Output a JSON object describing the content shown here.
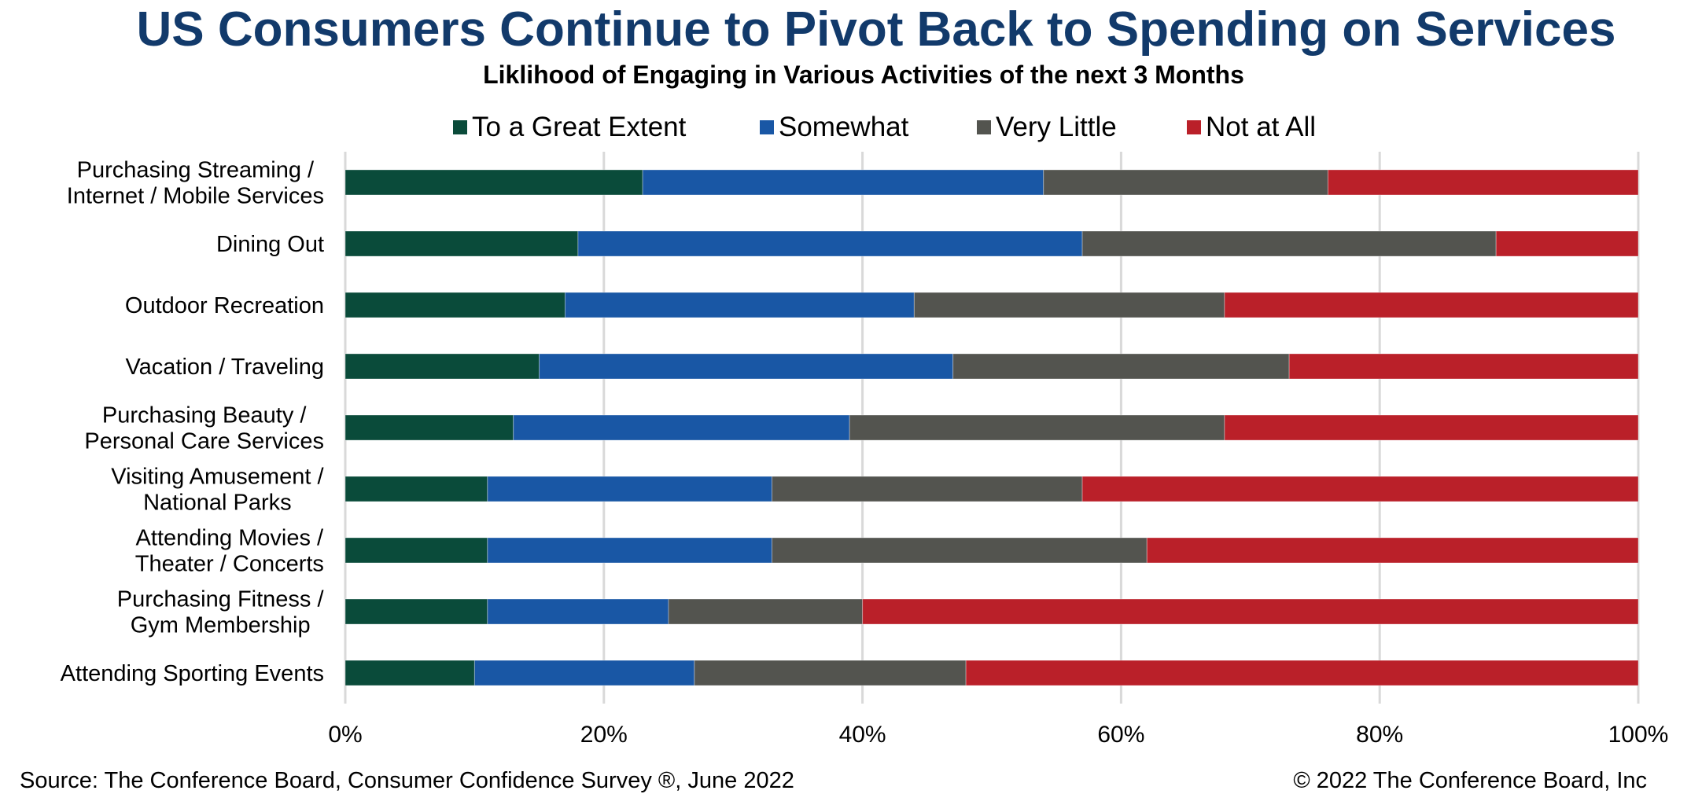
{
  "header": {
    "title": "US Consumers Continue to Pivot Back to Spending on Services",
    "subtitle": "Liklihood of Engaging in Various Activities of the next 3 Months"
  },
  "footer": {
    "source": "Source: The Conference Board, Consumer Confidence Survey ®, June 2022",
    "copyright": "© 2022 The Conference Board, Inc"
  },
  "chart_data": {
    "type": "bar",
    "orientation": "horizontal",
    "stacked": true,
    "percent_stacked": true,
    "title": "US Consumers Continue to Pivot Back to Spending on Services",
    "subtitle": "Liklihood of Engaging in Various Activities of the next 3 Months",
    "xlabel": "",
    "ylabel": "",
    "xlim": [
      0,
      100
    ],
    "x_ticks": [
      0,
      20,
      40,
      60,
      80,
      100
    ],
    "x_tick_labels": [
      "0%",
      "20%",
      "40%",
      "60%",
      "80%",
      "100%"
    ],
    "grid": "vertical",
    "legend_position": "top",
    "categories": [
      [
        "Purchasing Streaming /",
        "Internet / Mobile Services"
      ],
      [
        "Dining Out"
      ],
      [
        "Outdoor Recreation"
      ],
      [
        "Vacation / Traveling"
      ],
      [
        "Purchasing Beauty /",
        "Personal Care Services"
      ],
      [
        "Visiting Amusement /",
        "National Parks"
      ],
      [
        "Attending Movies /",
        "Theater / Concerts"
      ],
      [
        "Purchasing Fitness /",
        "Gym Membership"
      ],
      [
        "Attending Sporting Events"
      ]
    ],
    "series": [
      {
        "name": "To a Great Extent",
        "color": "#0A4B3A",
        "values": [
          23,
          18,
          17,
          15,
          13,
          11,
          11,
          11,
          10
        ]
      },
      {
        "name": "Somewhat",
        "color": "#1957A5",
        "values": [
          31,
          39,
          27,
          32,
          26,
          22,
          22,
          14,
          17
        ]
      },
      {
        "name": "Very Little",
        "color": "#53544F",
        "values": [
          22,
          32,
          24,
          26,
          29,
          24,
          29,
          15,
          21
        ]
      },
      {
        "name": "Not at All",
        "color": "#BA2029",
        "values": [
          24,
          11,
          32,
          27,
          32,
          43,
          38,
          60,
          52
        ]
      }
    ]
  }
}
